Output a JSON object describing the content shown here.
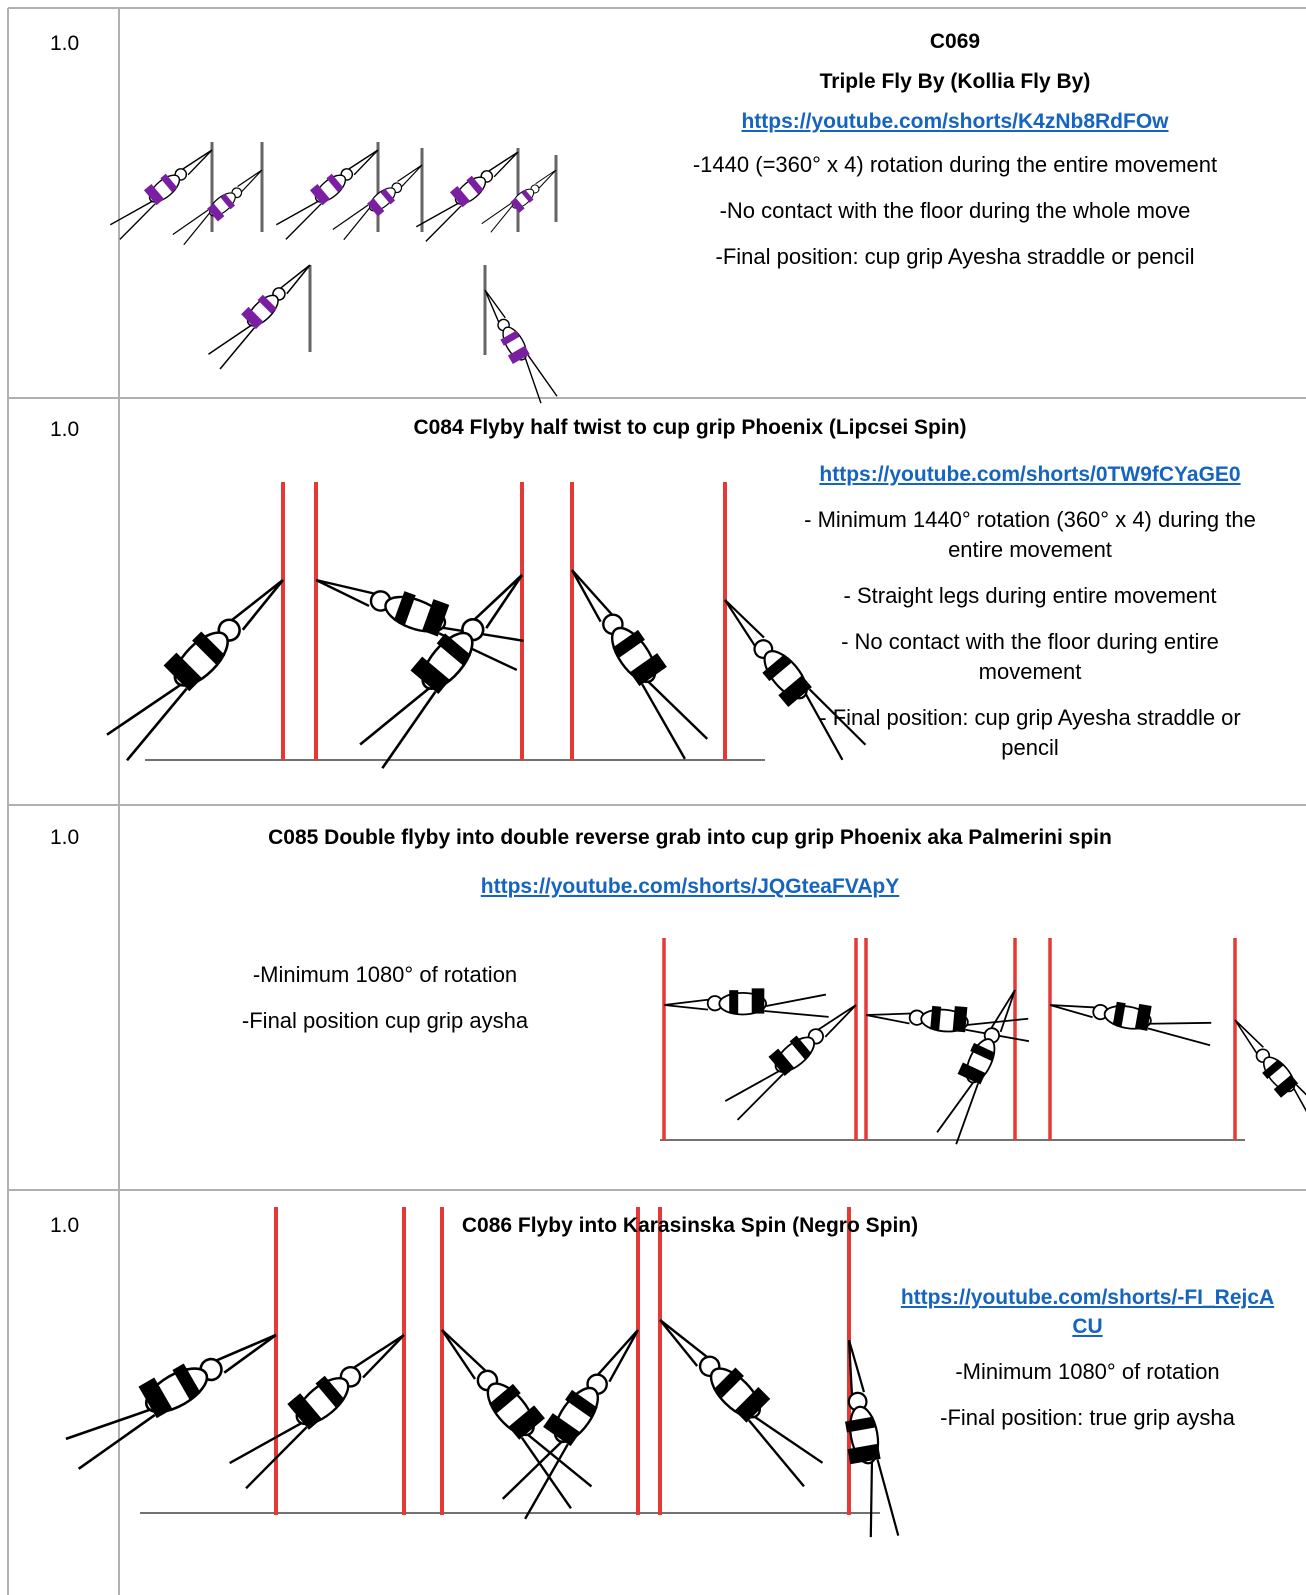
{
  "table": {
    "rows": [
      {
        "score": "1.0",
        "code": "C069",
        "title": "Triple Fly By (Kollia Fly By)",
        "link": "https://youtube.com/shorts/K4zNb8RdFOw",
        "bullets": [
          "-1440 (=360° x 4) rotation during the entire movement",
          "-No contact with the floor during the whole move",
          "-Final position: cup grip Ayesha straddle or pencil"
        ]
      },
      {
        "score": "1.0",
        "title": "C084 Flyby half twist to cup grip Phoenix (Lipcsei Spin)",
        "link": "https://youtube.com/shorts/0TW9fCYaGE0",
        "bullets": [
          "- Minimum 1440° rotation (360° x 4) during the entire movement",
          "- Straight legs during entire movement",
          "- No contact with the floor during entire movement",
          "- Final position: cup grip Ayesha straddle or pencil"
        ]
      },
      {
        "score": "1.0",
        "title": "C085 Double flyby into double reverse grab into cup grip Phoenix aka Palmerini spin",
        "link": "https://youtube.com/shorts/JQGteaFVApY",
        "bullets": [
          "-Minimum 1080° of rotation",
          "-Final position cup grip aysha"
        ]
      },
      {
        "score": "1.0",
        "title": "C086 Flyby into Karasinska Spin (Negro Spin)",
        "link": "https://youtube.com/shorts/-FI_RejcACU",
        "bullets": [
          "-Minimum 1080° of rotation",
          "-Final position: true grip aysha"
        ]
      }
    ]
  }
}
